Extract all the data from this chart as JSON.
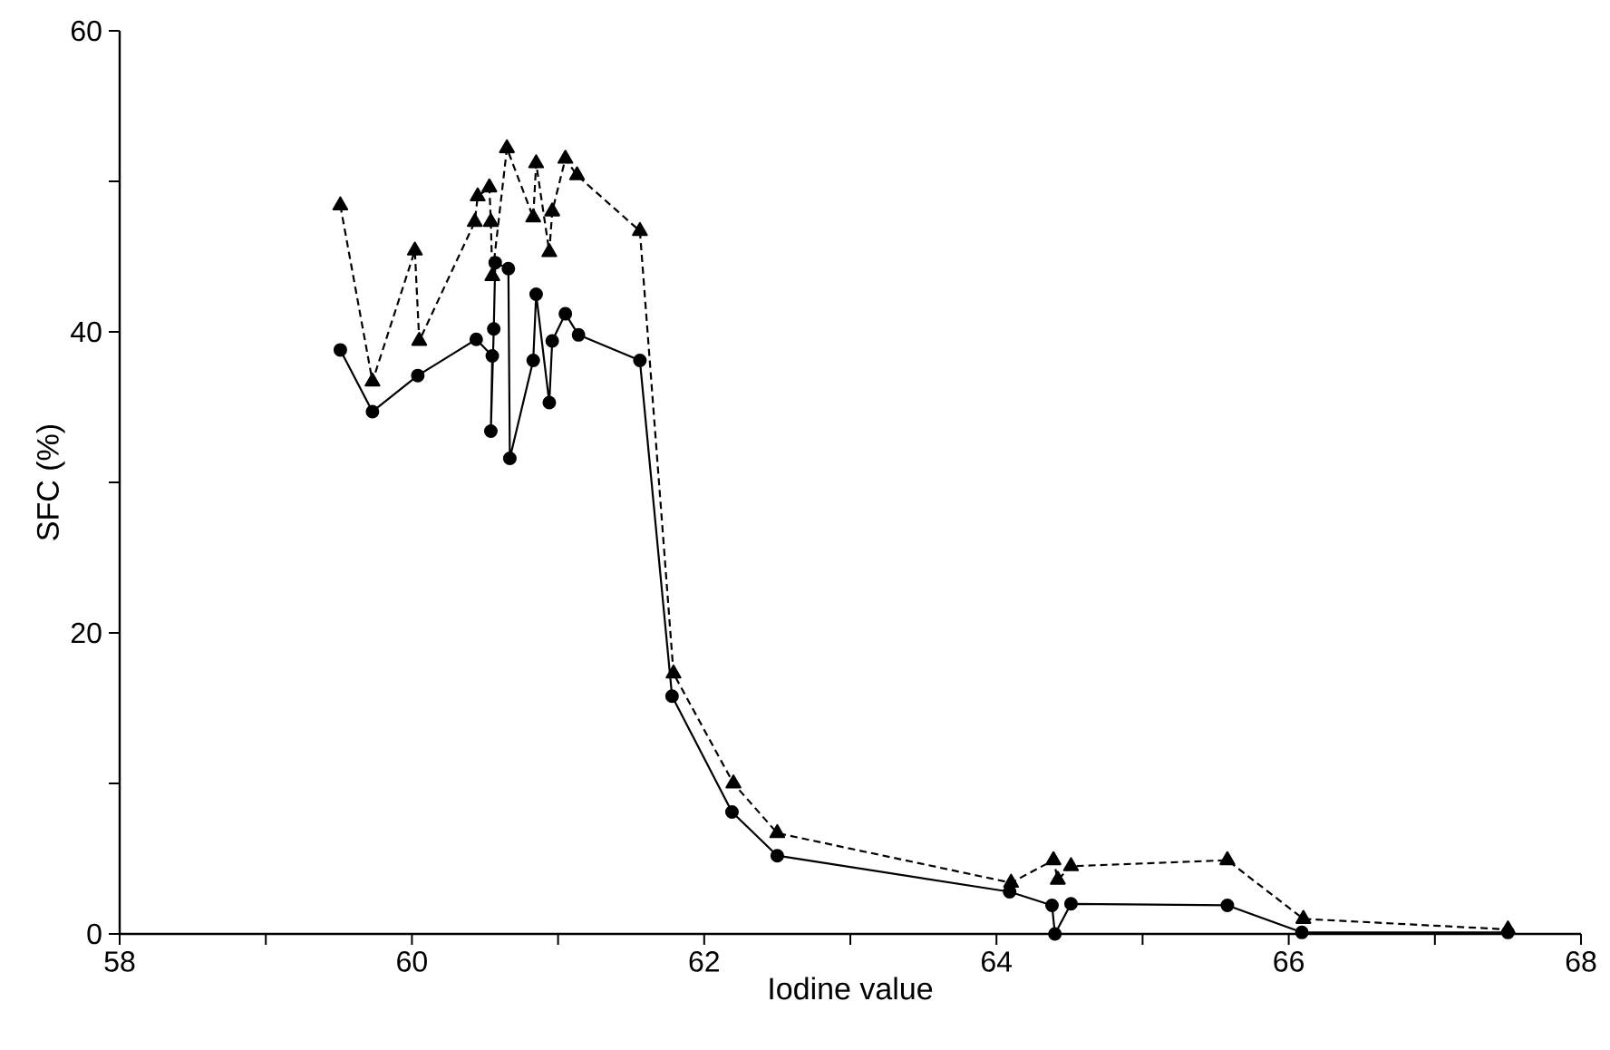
{
  "chart_data": {
    "type": "line",
    "xlabel": "Iodine value",
    "ylabel": "SFC (%)",
    "xlim": [
      58,
      68
    ],
    "ylim": [
      0,
      60
    ],
    "xticks": [
      58,
      {
        "value": 59,
        "label": null
      },
      60,
      {
        "value": 61,
        "label": null
      },
      62,
      {
        "value": 63,
        "label": null
      },
      64,
      {
        "value": 65,
        "label": null
      },
      66,
      {
        "value": 67,
        "label": null
      },
      68
    ],
    "yticks": [
      0,
      {
        "value": 10,
        "label": null
      },
      20,
      {
        "value": 30,
        "label": null
      },
      40,
      {
        "value": 50,
        "label": null
      },
      60
    ],
    "grid": false,
    "series": [
      {
        "color": "#000000",
        "marker": "circle",
        "line_style": "solid",
        "x": [
          59.51,
          59.73,
          60.04,
          60.44,
          60.55,
          60.54,
          60.56,
          60.57,
          60.66,
          60.67,
          60.83,
          60.85,
          60.94,
          60.96,
          61.05,
          61.14,
          61.56,
          61.78,
          62.19,
          62.5,
          64.09,
          64.38,
          64.4,
          64.51,
          65.58,
          66.09,
          67.5
        ],
        "values": [
          38.8,
          34.7,
          37.1,
          39.5,
          38.4,
          33.4,
          40.2,
          44.6,
          44.2,
          31.6,
          38.1,
          42.5,
          35.3,
          39.4,
          41.2,
          39.8,
          38.1,
          15.8,
          8.1,
          5.2,
          2.8,
          1.9,
          0,
          2.0,
          1.9,
          0.1,
          0.1
        ]
      },
      {
        "color": "#000000",
        "marker": "triangle",
        "line_style": "dashed",
        "x": [
          59.51,
          59.73,
          60.02,
          60.05,
          60.43,
          60.45,
          60.53,
          60.54,
          60.55,
          60.65,
          60.83,
          60.85,
          60.94,
          60.96,
          61.05,
          61.13,
          61.56,
          61.79,
          62.2,
          62.5,
          64.1,
          64.39,
          64.42,
          64.51,
          65.58,
          66.1,
          67.5
        ],
        "values": [
          48.4,
          36.7,
          45.4,
          39.4,
          47.3,
          49.0,
          49.6,
          47.3,
          43.7,
          52.2,
          47.6,
          51.2,
          45.3,
          48.0,
          51.5,
          50.4,
          46.7,
          17.3,
          10.0,
          6.7,
          3.4,
          4.9,
          3.6,
          4.5,
          4.9,
          1.0,
          0.3
        ]
      }
    ]
  }
}
